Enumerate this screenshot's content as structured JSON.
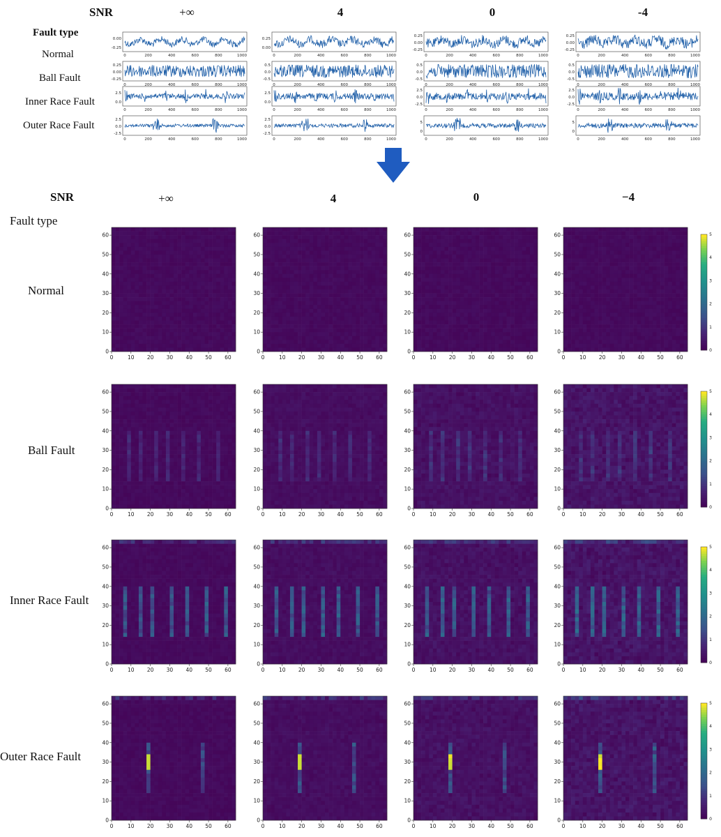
{
  "top": {
    "snr_label": "SNR",
    "fault_type_label": "Fault type",
    "snr_columns": [
      "+∞",
      "4",
      "0",
      "-4"
    ],
    "rows": [
      "Normal",
      "Ball Fault",
      "Inner Race Fault",
      "Outer Race Fault"
    ]
  },
  "bottom": {
    "snr_label": "SNR",
    "fault_type_label": "Fault type",
    "snr_columns": [
      "+∞",
      "4",
      "0",
      "−4"
    ],
    "rows": [
      "Normal",
      "Ball Fault",
      "Inner Race Fault",
      "Outer Race Fault"
    ]
  },
  "colors": {
    "signal": "#1f5fa8",
    "arrow": "#1f5cc0",
    "viridis_low": "#440154",
    "viridis_mid": "#21918c",
    "viridis_high": "#fde725"
  },
  "chart_data": [
    {
      "type": "line",
      "title": "",
      "description_rows": [
        "Normal",
        "Ball Fault",
        "Inner Race Fault",
        "Outer Race Fault"
      ],
      "columns": [
        "+∞",
        "4",
        "0",
        "-4"
      ],
      "x_ticks": [
        0,
        200,
        400,
        600,
        800,
        1000
      ],
      "xlim": [
        0,
        1024
      ],
      "y_ticks": [
        [
          [
            "0.00",
            "-0.25"
          ],
          [
            "0.25",
            "0.00"
          ],
          [
            "0.25",
            "0.00",
            "-0.25"
          ],
          [
            "0.25",
            "0.00",
            "-0.25"
          ]
        ],
        [
          [
            "0.25",
            "0.00",
            "-0.25"
          ],
          [
            "0.5",
            "0.0",
            "-0.5"
          ],
          [
            "0.5",
            "0.0",
            "-0.5"
          ],
          [
            "0.5",
            "0.0",
            "-0.5"
          ]
        ],
        [
          [
            "2.5",
            "0.0"
          ],
          [
            "2.5",
            "0.0"
          ],
          [
            "2.5",
            "0.0",
            "-2.5"
          ],
          [
            "2.5",
            "0.0",
            "-2.5"
          ]
        ],
        [
          [
            "2.5",
            "0.0",
            "-2.5"
          ],
          [
            "2.5",
            "0.0",
            "-2.5"
          ],
          [
            "5",
            "0"
          ],
          [
            "5",
            "0"
          ]
        ]
      ]
    },
    {
      "type": "heatmap",
      "title": "",
      "rows": [
        "Normal",
        "Ball Fault",
        "Inner Race Fault",
        "Outer Race Fault"
      ],
      "columns": [
        "+∞",
        "4",
        "0",
        "−4"
      ],
      "x_ticks": [
        0,
        10,
        20,
        30,
        40,
        50,
        60
      ],
      "y_ticks": [
        0,
        10,
        20,
        30,
        40,
        50,
        60
      ],
      "xlim": [
        0,
        64
      ],
      "ylim": [
        0,
        64
      ],
      "colorbar": {
        "ticks": [
          0,
          1,
          2,
          3,
          4,
          5
        ],
        "range": [
          0,
          5
        ],
        "colormap": "viridis"
      }
    }
  ]
}
